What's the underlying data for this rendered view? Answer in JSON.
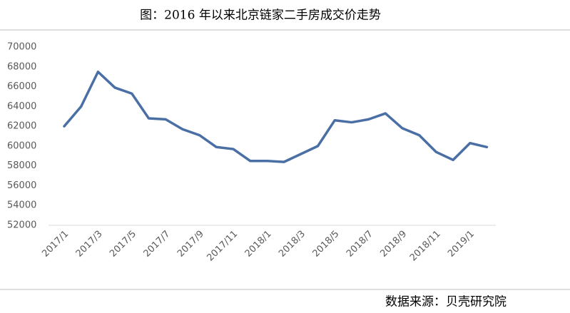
{
  "chart_data": {
    "type": "line",
    "title": "图：2016 年以来北京链家二手房成交价走势",
    "source": "数据来源：贝壳研究院",
    "categories": [
      "2017/1",
      null,
      "2017/3",
      null,
      "2017/5",
      null,
      "2017/7",
      null,
      "2017/9",
      null,
      "2017/11",
      null,
      "2018/1",
      null,
      "2018/3",
      null,
      "2018/5",
      null,
      "2018/7",
      null,
      "2018/9",
      null,
      "2018/11",
      null,
      "2019/1",
      null
    ],
    "values": [
      62000,
      64000,
      67500,
      65900,
      65300,
      62800,
      62700,
      61700,
      61100,
      59900,
      59700,
      58500,
      58500,
      58400,
      59200,
      60000,
      62600,
      62400,
      62700,
      63300,
      61800,
      61100,
      59400,
      58600,
      60300,
      59900
    ],
    "color": "#4a6fa5",
    "ylim": [
      52000,
      70000
    ],
    "yticks": [
      52000,
      54000,
      56000,
      58000,
      60000,
      62000,
      64000,
      66000,
      68000,
      70000
    ],
    "grid": false
  }
}
